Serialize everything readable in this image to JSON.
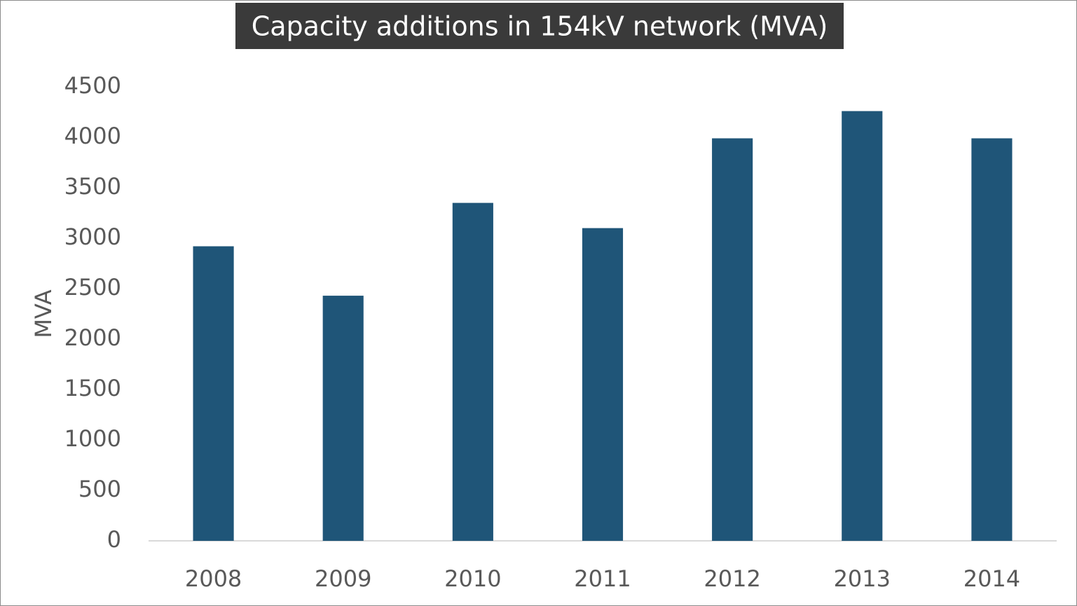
{
  "chart_data": {
    "type": "bar",
    "title": "Capacity additions in 154kV network (MVA)",
    "y_label": "MVA",
    "categories": [
      "2008",
      "2009",
      "2010",
      "2011",
      "2012",
      "2013",
      "2014"
    ],
    "values": [
      2920,
      2430,
      3350,
      3100,
      3990,
      4260,
      3990
    ],
    "color": "#1f5578",
    "ylim": [
      0,
      4500
    ],
    "yticks": [
      0,
      500,
      1000,
      1500,
      2000,
      2500,
      3000,
      3500,
      4000,
      4500
    ],
    "grid": false
  }
}
